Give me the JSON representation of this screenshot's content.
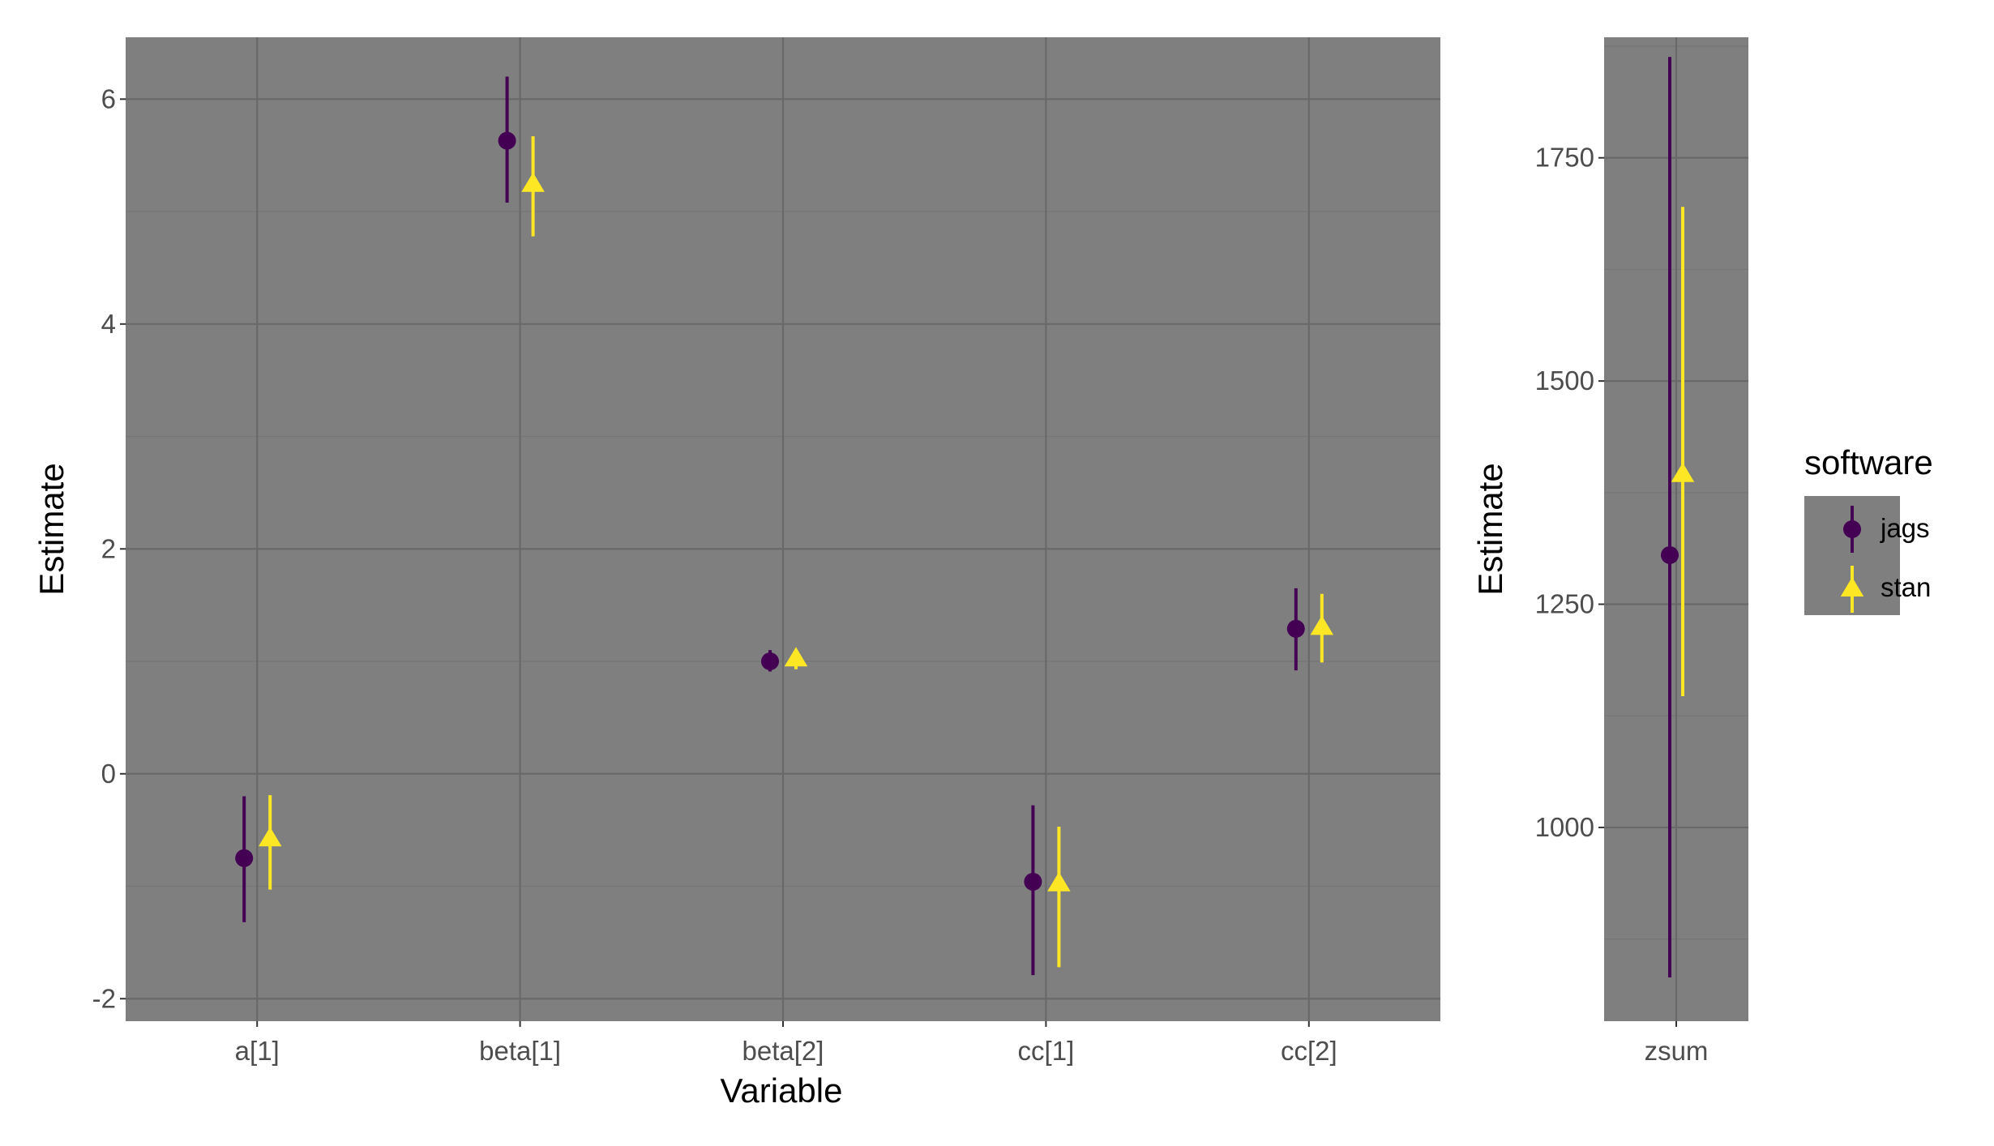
{
  "colors": {
    "panel_background": "#7f7f7f",
    "grid_major": "#696969",
    "grid_minor": "#757575",
    "tick_text": "#4d4d4d",
    "jags": "#440154",
    "stan": "#fde725"
  },
  "chart_data": [
    {
      "type": "pointrange",
      "xlabel": "Variable",
      "ylabel": "Estimate",
      "categories": [
        "a[1]",
        "beta[1]",
        "beta[2]",
        "cc[1]",
        "cc[2]"
      ],
      "ylim": [
        -2.2,
        6.55
      ],
      "yticks": [
        -2,
        0,
        2,
        4,
        6
      ],
      "yticklabels": [
        "-2",
        "0",
        "2",
        "4",
        "6"
      ],
      "grid": true,
      "series": [
        {
          "name": "jags",
          "shape": "circle",
          "color": "#440154",
          "estimate": [
            -0.75,
            5.63,
            1.0,
            -0.96,
            1.29
          ],
          "lower": [
            -1.32,
            5.08,
            0.91,
            -1.79,
            0.92
          ],
          "upper": [
            -0.2,
            6.2,
            1.1,
            -0.28,
            1.65
          ]
        },
        {
          "name": "stan",
          "shape": "triangle",
          "color": "#fde725",
          "estimate": [
            -0.58,
            5.24,
            1.02,
            -0.98,
            1.3
          ],
          "lower": [
            -1.03,
            4.78,
            0.93,
            -1.72,
            0.99
          ],
          "upper": [
            -0.19,
            5.67,
            1.1,
            -0.47,
            1.6
          ]
        }
      ]
    },
    {
      "type": "pointrange",
      "xlabel": "",
      "ylabel": "Estimate",
      "categories": [
        "zsum"
      ],
      "ylim": [
        783,
        1885
      ],
      "yticks": [
        1000,
        1250,
        1500,
        1750
      ],
      "yticklabels": [
        "1000",
        "1250",
        "1500",
        "1750"
      ],
      "grid": true,
      "series": [
        {
          "name": "jags",
          "shape": "circle",
          "color": "#440154",
          "estimate": [
            1305
          ],
          "lower": [
            832
          ],
          "upper": [
            1863
          ]
        },
        {
          "name": "stan",
          "shape": "triangle",
          "color": "#fde725",
          "estimate": [
            1395
          ],
          "lower": [
            1147
          ],
          "upper": [
            1695
          ]
        }
      ]
    }
  ],
  "legend": {
    "title": "software",
    "placement": "right",
    "items": [
      {
        "label": "jags",
        "shape": "circle",
        "color": "#440154"
      },
      {
        "label": "stan",
        "shape": "triangle",
        "color": "#fde725"
      }
    ]
  }
}
